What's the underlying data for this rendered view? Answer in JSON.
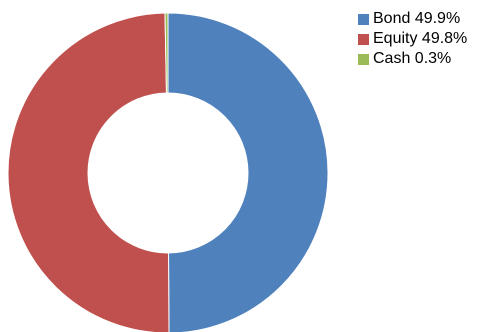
{
  "chart_data": {
    "type": "pie",
    "variant": "donut",
    "title": "",
    "legend_position": "top-right",
    "series": [
      {
        "name": "Bond",
        "value": 49.9,
        "label": "Bond 49.9%",
        "color": "#4f81bd"
      },
      {
        "name": "Equity",
        "value": 49.8,
        "label": "Equity 49.8%",
        "color": "#c0504d"
      },
      {
        "name": "Cash",
        "value": 0.3,
        "label": "Cash 0.3%",
        "color": "#9bbb59"
      }
    ]
  }
}
